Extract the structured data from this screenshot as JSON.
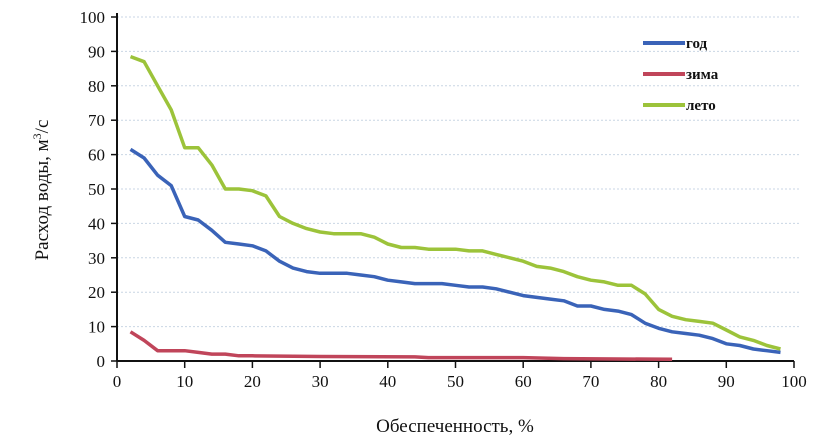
{
  "chart_data": {
    "type": "line",
    "title": "",
    "xlabel": "Обеспеченность, %",
    "ylabel": "Расход воды, м³/с",
    "ylabel_parts": {
      "main": "Расход воды, м",
      "sup": "3",
      "tail": "/с"
    },
    "xlim": [
      0,
      100
    ],
    "ylim": [
      0,
      100
    ],
    "xticks": [
      0,
      10,
      20,
      30,
      40,
      50,
      60,
      70,
      80,
      90,
      100
    ],
    "yticks": [
      0,
      10,
      20,
      30,
      40,
      50,
      60,
      70,
      80,
      90,
      100
    ],
    "grid": true,
    "legend_position": "top-right",
    "series": [
      {
        "name": "год",
        "color": "#3a63b8",
        "x": [
          2,
          4,
          6,
          8,
          10,
          12,
          14,
          16,
          18,
          20,
          22,
          24,
          26,
          28,
          30,
          32,
          34,
          36,
          38,
          40,
          42,
          44,
          46,
          48,
          50,
          52,
          54,
          56,
          58,
          60,
          62,
          64,
          66,
          68,
          70,
          72,
          74,
          76,
          78,
          80,
          82,
          84,
          86,
          88,
          90,
          92,
          94,
          96,
          98
        ],
        "y": [
          61.5,
          59,
          54,
          51,
          42,
          41,
          38,
          34.5,
          34,
          33.5,
          32,
          29,
          27,
          26,
          25.5,
          25.5,
          25.5,
          25,
          24.5,
          23.5,
          23,
          22.5,
          22.5,
          22.5,
          22,
          21.5,
          21.5,
          21,
          20,
          19,
          18.5,
          18,
          17.5,
          16,
          16,
          15,
          14.5,
          13.5,
          11,
          9.5,
          8.5,
          8,
          7.5,
          6.5,
          5,
          4.5,
          3.5,
          3,
          2.5
        ]
      },
      {
        "name": "зима",
        "color": "#c0455a",
        "x": [
          2,
          4,
          6,
          8,
          10,
          12,
          14,
          16,
          18,
          20,
          30,
          44,
          46,
          60,
          66,
          82
        ],
        "y": [
          8.5,
          6,
          3,
          3,
          3,
          2.5,
          2,
          2,
          1.5,
          1.5,
          1.3,
          1.2,
          1,
          1,
          0.7,
          0.5
        ]
      },
      {
        "name": "лето",
        "color": "#9cc33a",
        "x": [
          2,
          4,
          6,
          8,
          10,
          12,
          14,
          16,
          18,
          20,
          22,
          24,
          26,
          28,
          30,
          32,
          34,
          36,
          38,
          40,
          42,
          44,
          46,
          48,
          50,
          52,
          54,
          56,
          58,
          60,
          62,
          64,
          66,
          68,
          70,
          72,
          74,
          76,
          78,
          80,
          82,
          84,
          86,
          88,
          90,
          92,
          94,
          96,
          98
        ],
        "y": [
          88.5,
          87,
          80,
          73,
          62,
          62,
          57,
          50,
          50,
          49.5,
          48,
          42,
          40,
          38.5,
          37.5,
          37,
          37,
          37,
          36,
          34,
          33,
          33,
          32.5,
          32.5,
          32.5,
          32,
          32,
          31,
          30,
          29,
          27.5,
          27,
          26,
          24.5,
          23.5,
          23,
          22,
          22,
          19.5,
          15,
          13,
          12,
          11.5,
          11,
          9,
          7,
          6,
          4.5,
          3.5
        ]
      }
    ]
  }
}
